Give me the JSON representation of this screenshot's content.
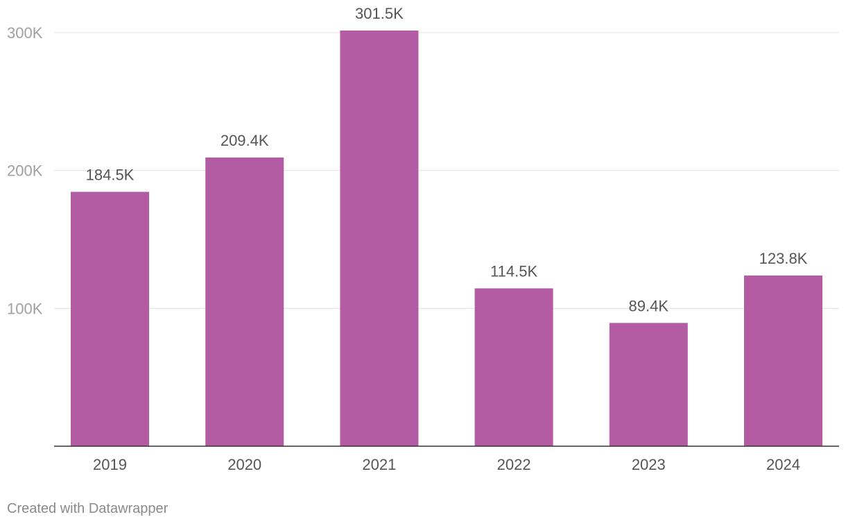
{
  "chart_data": {
    "type": "bar",
    "categories": [
      "2019",
      "2020",
      "2021",
      "2022",
      "2023",
      "2024"
    ],
    "values": [
      184500,
      209400,
      301500,
      114500,
      89400,
      123800
    ],
    "data_labels": [
      "184.5K",
      "209.4K",
      "301.5K",
      "114.5K",
      "89.4K",
      "123.8K"
    ],
    "y_ticks": [
      100000,
      200000,
      300000
    ],
    "y_tick_labels": [
      "100K",
      "200K",
      "300K"
    ],
    "ylim": [
      0,
      300000
    ],
    "grid": true,
    "bar_color": "#b35ba3"
  },
  "footer": {
    "credit": "Created with Datawrapper"
  }
}
